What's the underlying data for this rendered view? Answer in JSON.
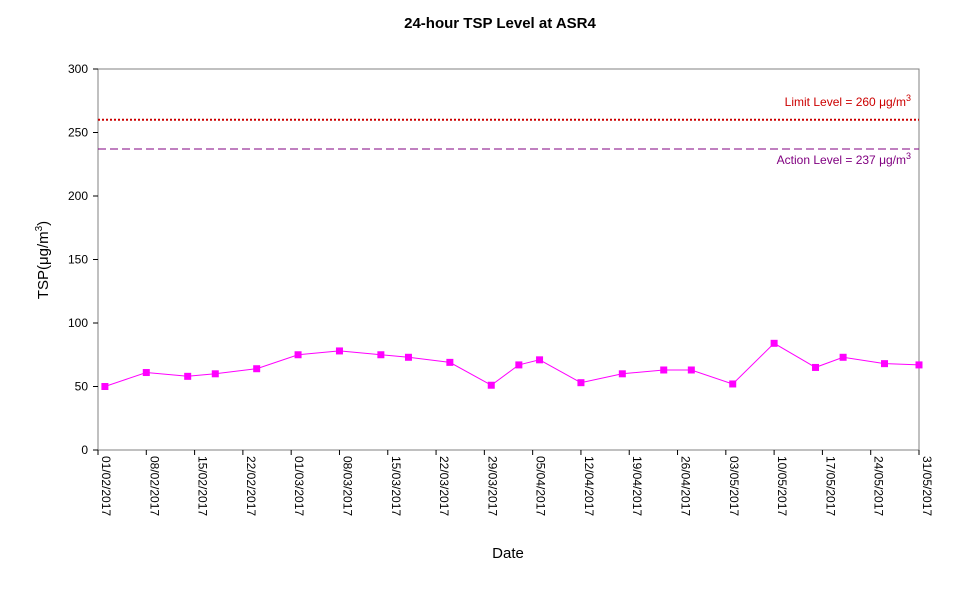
{
  "chart_data": {
    "type": "line",
    "title": "24-hour TSP Level at ASR4",
    "xlabel": "Date",
    "ylabel": "TSP(μg/m³)",
    "ylabel_main": "TSP(",
    "ylabel_unit": "μg/m",
    "ylabel_sup": "3",
    "ylabel_close": ")",
    "ylim": [
      0,
      300
    ],
    "yticks": [
      0,
      50,
      100,
      150,
      200,
      250,
      300
    ],
    "xlim": [
      "01/02/2017",
      "31/05/2017"
    ],
    "xticks": [
      "01/02/2017",
      "08/02/2017",
      "15/02/2017",
      "22/02/2017",
      "01/03/2017",
      "08/03/2017",
      "15/03/2017",
      "22/03/2017",
      "29/03/2017",
      "05/04/2017",
      "12/04/2017",
      "19/04/2017",
      "26/04/2017",
      "03/05/2017",
      "10/05/2017",
      "17/05/2017",
      "24/05/2017",
      "31/05/2017"
    ],
    "grid": false,
    "legend": "none",
    "series": [
      {
        "color": "#ff00ff",
        "marker": "square",
        "x": [
          "02/02/2017",
          "08/02/2017",
          "14/02/2017",
          "18/02/2017",
          "24/02/2017",
          "02/03/2017",
          "08/03/2017",
          "14/03/2017",
          "18/03/2017",
          "24/03/2017",
          "30/03/2017",
          "03/04/2017",
          "06/04/2017",
          "12/04/2017",
          "18/04/2017",
          "24/04/2017",
          "28/04/2017",
          "04/05/2017",
          "10/05/2017",
          "16/05/2017",
          "20/05/2017",
          "26/05/2017",
          "31/05/2017"
        ],
        "y": [
          50,
          61,
          58,
          60,
          64,
          75,
          78,
          75,
          73,
          69,
          51,
          67,
          71,
          53,
          60,
          63,
          63,
          52,
          84,
          65,
          73,
          68,
          67
        ]
      }
    ],
    "reference_lines": [
      {
        "label_main": "Limit Level  = 260 ",
        "label_unit": "μg/m",
        "label_sup": "3",
        "value": 260,
        "color": "#cc0000",
        "style": "dotted"
      },
      {
        "label_main": "Action Level  = 237 ",
        "label_unit": "μg/m",
        "label_sup": "3",
        "value": 237,
        "color": "#800080",
        "style": "dashed"
      }
    ]
  }
}
